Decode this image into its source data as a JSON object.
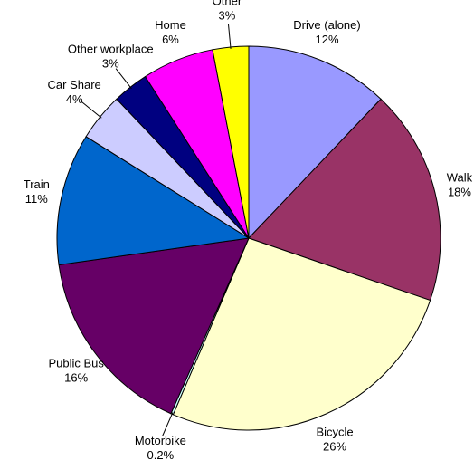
{
  "chart_data": {
    "type": "pie",
    "categories": [
      "Drive (alone)",
      "Walk",
      "Bicycle",
      "Motorbike",
      "Public Bus",
      "Train",
      "Car Share",
      "Other workplace",
      "Home",
      "Other"
    ],
    "values": [
      12,
      18,
      26,
      0.2,
      16,
      11,
      4,
      3,
      6,
      3
    ],
    "value_labels": [
      "12%",
      "18%",
      "26%",
      "0.2%",
      "16%",
      "11%",
      "4%",
      "3%",
      "6%",
      "3%"
    ],
    "colors": [
      "#9999ff",
      "#993366",
      "#ffffcc",
      "#ccffff",
      "#660066",
      "#0066cc",
      "#ccccff",
      "#000080",
      "#ff00ff",
      "#ffff00"
    ]
  }
}
